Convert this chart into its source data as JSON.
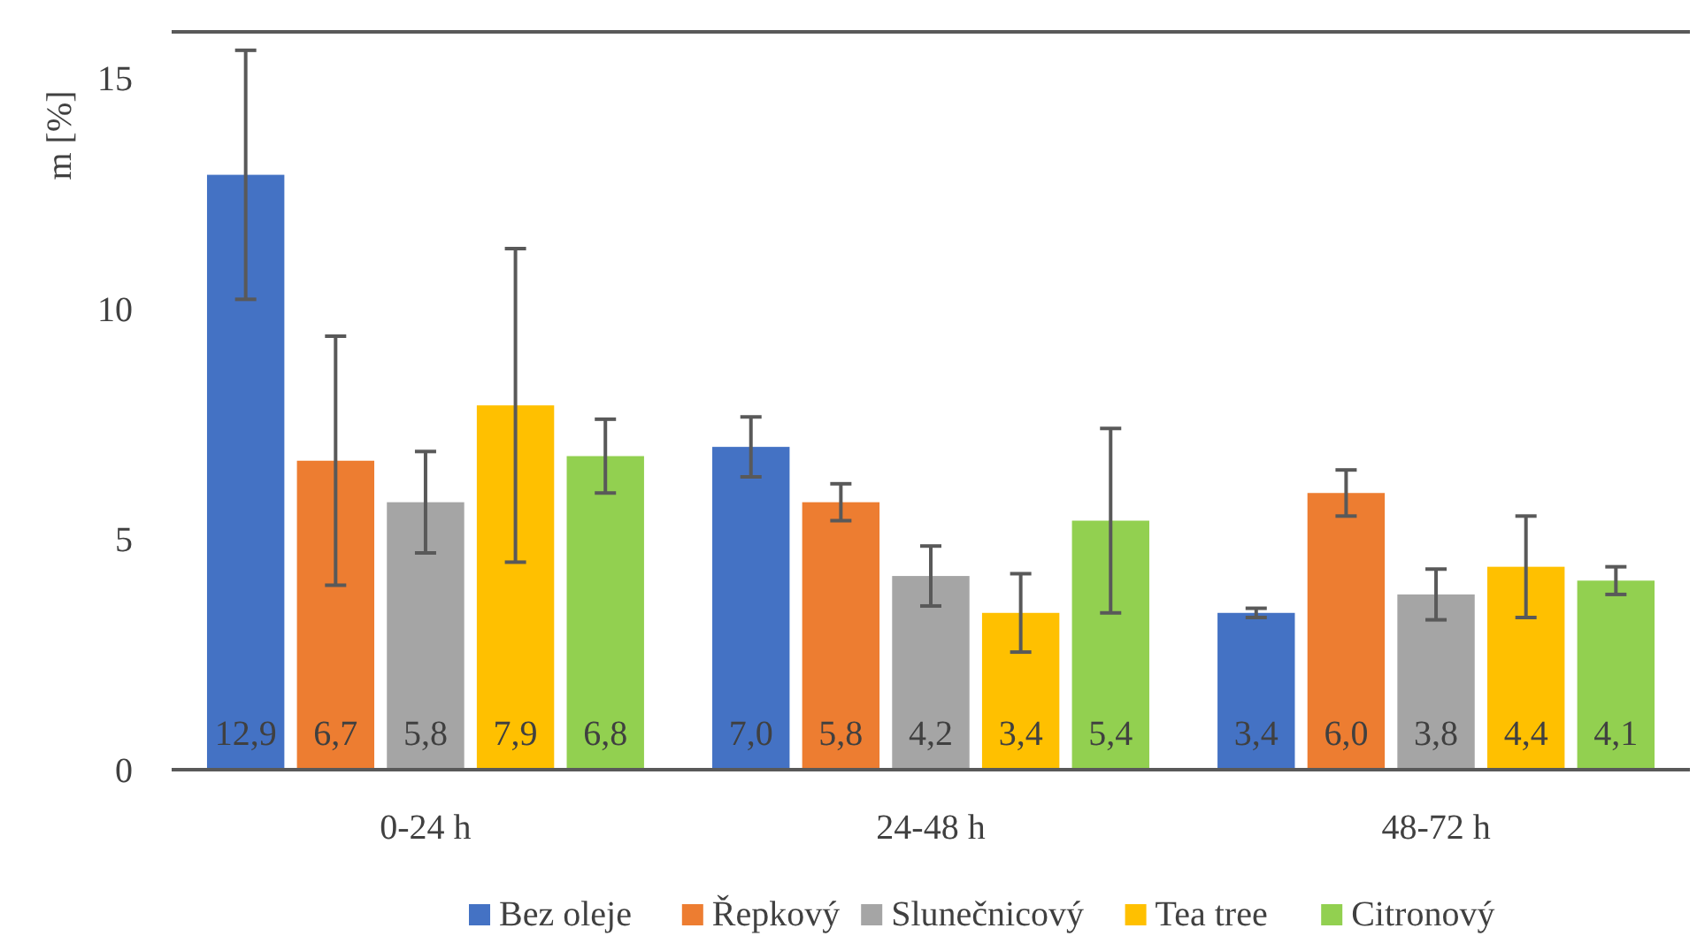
{
  "chart_data": {
    "type": "bar",
    "ylabel": "m [%]",
    "categories": [
      "0-24 h",
      "24-48 h",
      "48-72 h"
    ],
    "ylim": [
      0,
      16
    ],
    "yticks": [
      0,
      5,
      10,
      15
    ],
    "grid": false,
    "legend": "bottom",
    "series": [
      {
        "name": "Bez oleje",
        "color": "#4472c4",
        "values": [
          12.9,
          7.0,
          3.4
        ],
        "errors": [
          2.7,
          0.65,
          0.1
        ],
        "value_labels": [
          "12,9",
          "7,0",
          "3,4"
        ]
      },
      {
        "name": "Řepkový",
        "color": "#ed7d31",
        "values": [
          6.7,
          5.8,
          6.0
        ],
        "errors": [
          2.7,
          0.4,
          0.5
        ],
        "value_labels": [
          "6,7",
          "5,8",
          "6,0"
        ]
      },
      {
        "name": "Slunečnicový",
        "color": "#a5a5a5",
        "values": [
          5.8,
          4.2,
          3.8
        ],
        "errors": [
          1.1,
          0.65,
          0.55
        ],
        "value_labels": [
          "5,8",
          "4,2",
          "3,8"
        ]
      },
      {
        "name": "Tea tree",
        "color": "#ffc000",
        "values": [
          7.9,
          3.4,
          4.4
        ],
        "errors": [
          3.4,
          0.85,
          1.1
        ],
        "value_labels": [
          "7,9",
          "3,4",
          "4,4"
        ]
      },
      {
        "name": "Citronový",
        "color": "#92d050",
        "values": [
          6.8,
          5.4,
          4.1
        ],
        "errors": [
          0.8,
          2.0,
          0.3
        ],
        "value_labels": [
          "6,8",
          "5,4",
          "4,1"
        ]
      }
    ]
  }
}
